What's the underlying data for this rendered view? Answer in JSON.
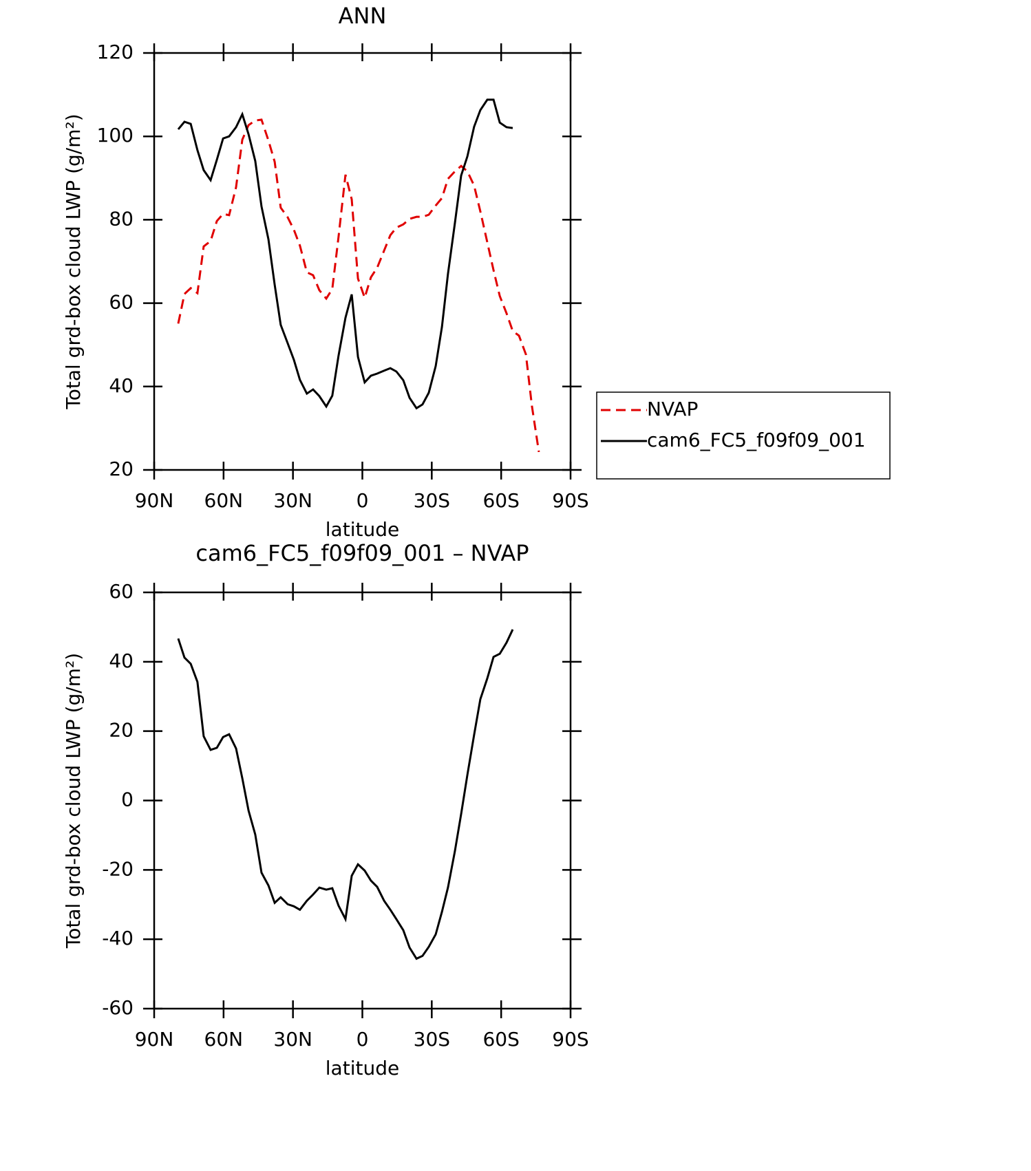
{
  "chart_data": [
    {
      "type": "line",
      "title": "ANN",
      "xlabel": "latitude",
      "ylabel": "Total grd-box cloud LWP (g/m²)",
      "x": [
        79.6,
        76.9,
        74.2,
        71.3,
        68.6,
        65.6,
        62.9,
        60.2,
        57.6,
        54.6,
        51.9,
        49.2,
        46.3,
        43.6,
        40.6,
        37.9,
        35.3,
        32.3,
        29.6,
        27.0,
        24.0,
        21.3,
        18.6,
        15.6,
        13.0,
        10.3,
        7.3,
        4.6,
        1.9,
        -1.0,
        -3.7,
        -6.4,
        -9.4,
        -12.1,
        -14.7,
        -17.7,
        -20.4,
        -23.4,
        -26.0,
        -28.7,
        -31.7,
        -34.4,
        -37.0,
        -40.0,
        -42.7,
        -45.4,
        -48.3,
        -51.0,
        -54.0,
        -56.7,
        -59.4,
        -62.3,
        -65.0,
        -67.7,
        -70.7,
        -73.3,
        -76.3
      ],
      "series": [
        {
          "name": "NVAP",
          "color": "#e00000",
          "dashed": true,
          "values": [
            55.1,
            62.2,
            63.6,
            62.4,
            73.6,
            74.9,
            79.7,
            81.4,
            81.1,
            87.8,
            99.2,
            102.7,
            103.8,
            104.0,
            99.0,
            93.9,
            82.9,
            80.6,
            77.6,
            73.8,
            67.4,
            66.7,
            63.1,
            61.1,
            63.4,
            75.9,
            90.8,
            84.9,
            65.9,
            61.3,
            66.2,
            68.5,
            72.6,
            76.3,
            78.1,
            78.9,
            80.2,
            80.7,
            80.7,
            81.2,
            83.4,
            85.2,
            89.8,
            91.6,
            92.9,
            91.6,
            88.2,
            82.0,
            74.6,
            67.9,
            61.7,
            57.6,
            53.3,
            52.2,
            47.7,
            35.3,
            24.3
          ]
        },
        {
          "name": "cam6_FC5_f09f09_001",
          "color": "#000000",
          "dashed": false,
          "values": [
            101.7,
            103.5,
            103.0,
            96.7,
            91.9,
            89.5,
            94.4,
            99.5,
            100.0,
            102.2,
            105.3,
            100.5,
            94.1,
            83.2,
            75.3,
            64.4,
            54.8,
            50.4,
            46.4,
            41.6,
            38.3,
            39.3,
            37.7,
            35.2,
            37.8,
            47.4,
            56.5,
            62.1,
            47.1,
            41.0,
            42.6,
            43.1,
            43.8,
            44.4,
            43.6,
            41.5,
            37.3,
            34.8,
            35.7,
            38.5,
            44.9,
            54.3,
            67.0,
            79.2,
            90.6,
            95.2,
            102.3,
            106.3,
            108.8,
            108.8,
            103.3,
            102.2,
            102.0,
            null,
            null,
            null,
            null
          ]
        }
      ],
      "xlim": [
        90,
        -90
      ],
      "xticks": [
        {
          "value": 90,
          "label": "90N"
        },
        {
          "value": 60,
          "label": "60N"
        },
        {
          "value": 30,
          "label": "30N"
        },
        0,
        {
          "value": -30,
          "label": "30S"
        },
        {
          "value": -60,
          "label": "60S"
        },
        {
          "value": -90,
          "label": "90S"
        }
      ],
      "ylim": [
        20,
        120
      ],
      "yticks": [
        20,
        40,
        60,
        80,
        100,
        120
      ],
      "legend": "right"
    },
    {
      "type": "line",
      "title": "cam6_FC5_f09f09_001 – NVAP",
      "xlabel": "latitude",
      "ylabel": "Total grd-box cloud LWP (g/m²)",
      "x": [
        79.6,
        76.9,
        74.2,
        71.3,
        68.6,
        65.6,
        62.9,
        60.2,
        57.6,
        54.6,
        51.9,
        49.2,
        46.3,
        43.6,
        40.6,
        37.9,
        35.3,
        32.3,
        29.6,
        27.0,
        24.0,
        21.3,
        18.6,
        15.6,
        13.0,
        10.3,
        7.3,
        4.6,
        1.9,
        -1.0,
        -3.7,
        -6.4,
        -9.4,
        -12.1,
        -14.7,
        -17.7,
        -20.4,
        -23.4,
        -26.0,
        -28.7,
        -31.7,
        -34.4,
        -37.0,
        -40.0,
        -42.7,
        -45.4,
        -48.3,
        -51.0,
        -54.0,
        -56.7,
        -59.4,
        -62.3,
        -65.0
      ],
      "series": [
        {
          "color": "#000000",
          "dashed": false,
          "values": [
            46.7,
            41.2,
            39.4,
            34.2,
            18.5,
            14.6,
            15.2,
            18.3,
            19.1,
            15.0,
            6.4,
            -2.9,
            -9.8,
            -20.8,
            -24.5,
            -29.5,
            -27.9,
            -29.9,
            -30.5,
            -31.5,
            -28.9,
            -27.1,
            -25.1,
            -25.7,
            -25.3,
            -30.3,
            -34.2,
            -21.7,
            -18.4,
            -20.2,
            -23.1,
            -24.9,
            -28.9,
            -31.5,
            -34.2,
            -37.4,
            -42.4,
            -45.6,
            -44.8,
            -42.2,
            -38.6,
            -32.1,
            -25.1,
            -14.6,
            -3.9,
            7.4,
            18.9,
            29.2,
            35.2,
            41.4,
            42.3,
            45.5,
            49.3
          ]
        }
      ],
      "xlim": [
        90,
        -90
      ],
      "xticks": [
        {
          "value": 90,
          "label": "90N"
        },
        {
          "value": 60,
          "label": "60N"
        },
        {
          "value": 30,
          "label": "30N"
        },
        0,
        {
          "value": -30,
          "label": "30S"
        },
        {
          "value": -60,
          "label": "60S"
        },
        {
          "value": -90,
          "label": "90S"
        }
      ],
      "ylim": [
        -60,
        60
      ],
      "yticks": [
        -60,
        -40,
        -20,
        0,
        20,
        40,
        60
      ]
    }
  ]
}
